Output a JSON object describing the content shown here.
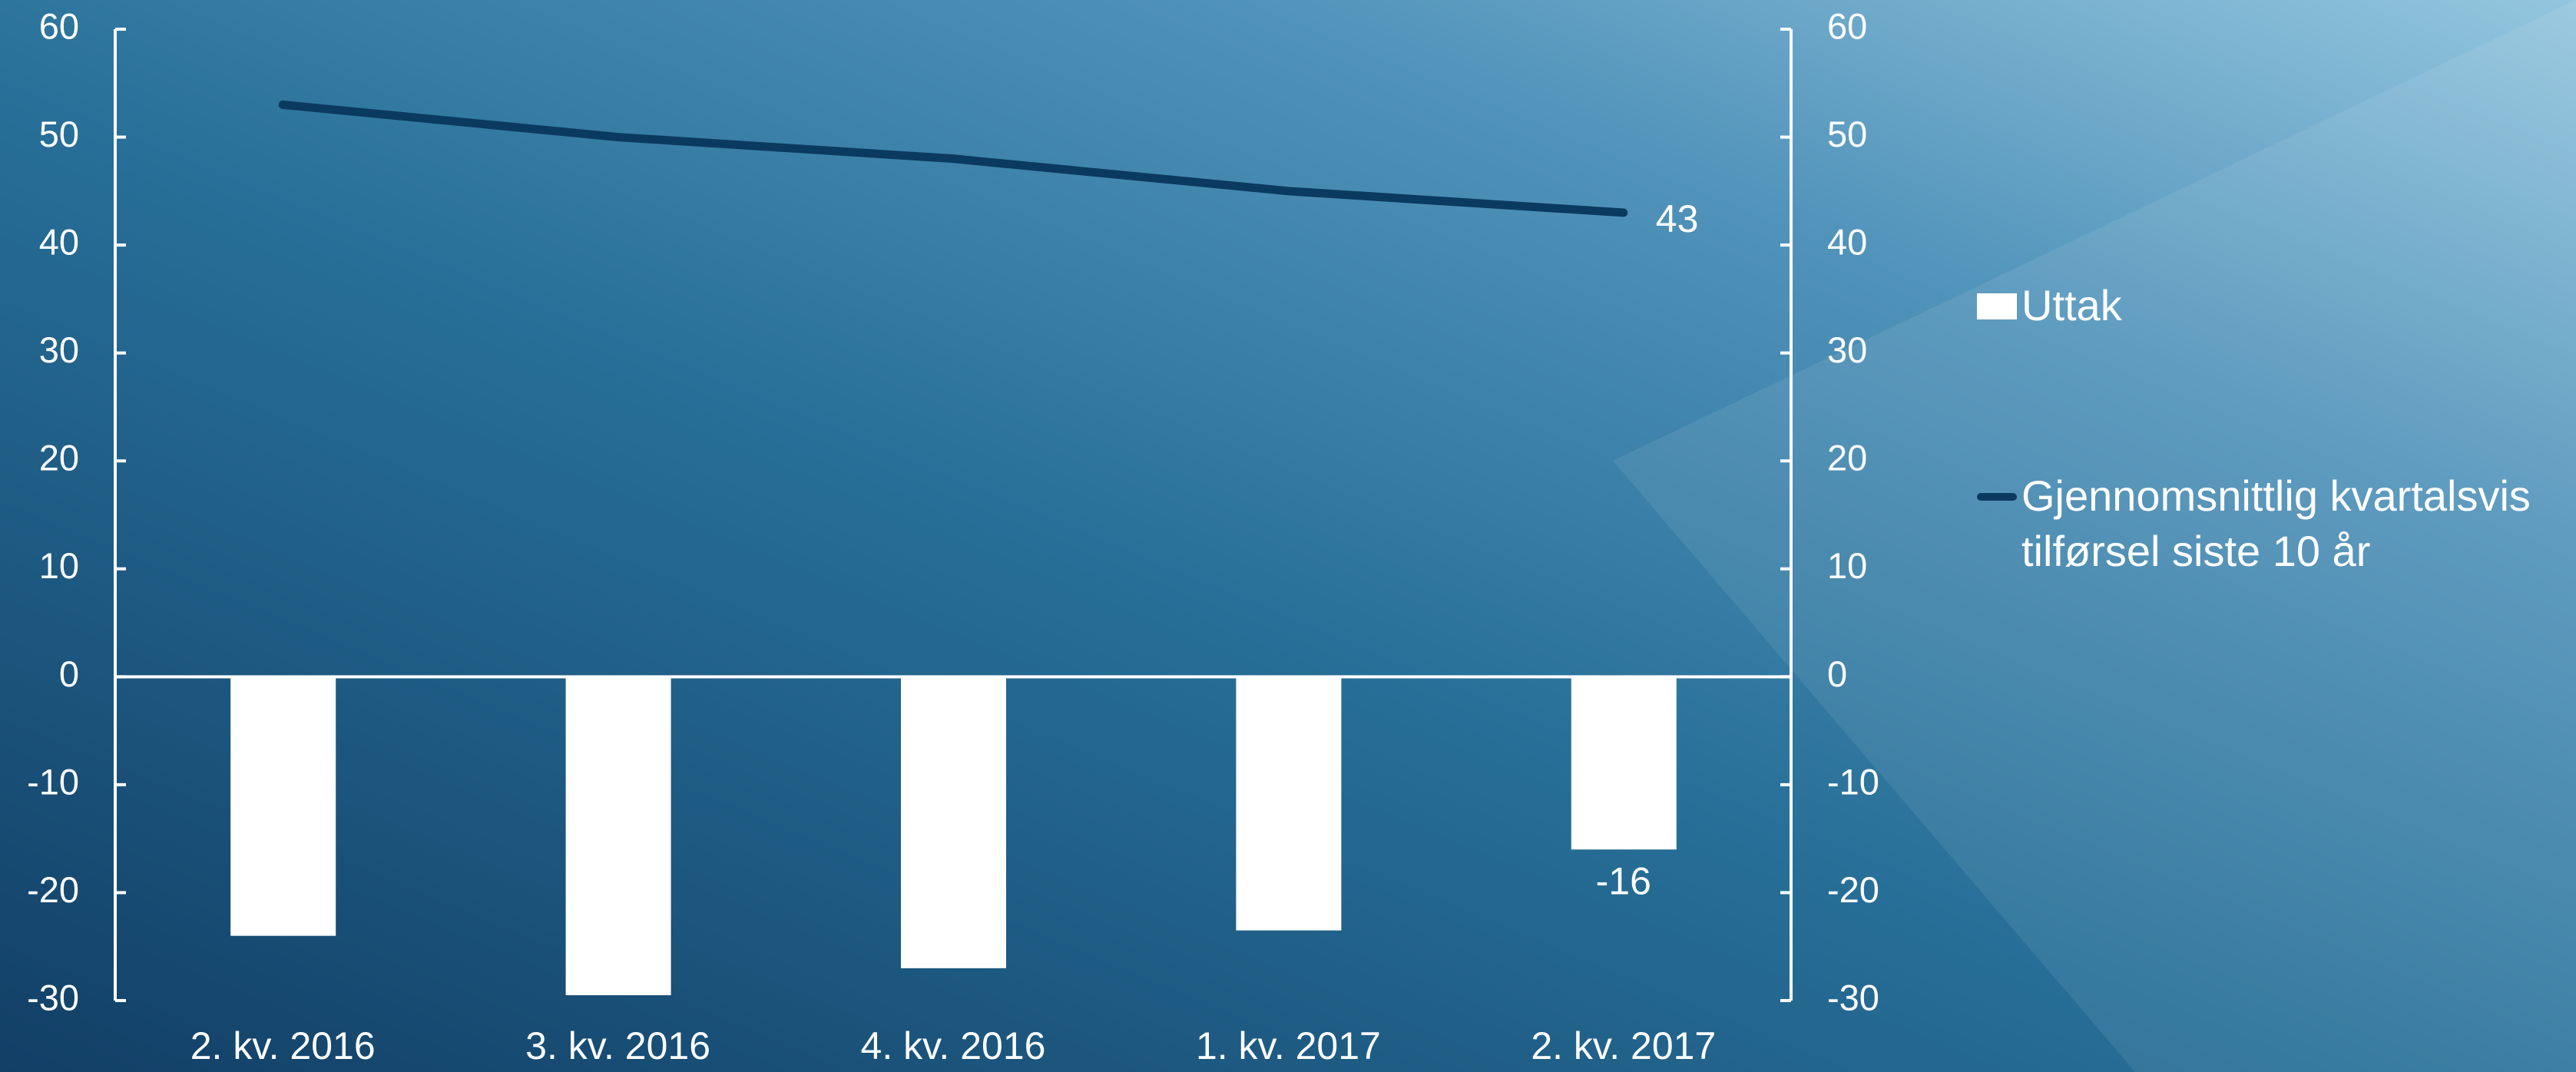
{
  "chart_data": {
    "type": "bar_line",
    "categories": [
      "2. kv. 2016",
      "3. kv. 2016",
      "4. kv. 2016",
      "1. kv. 2017",
      "2. kv. 2017"
    ],
    "series": [
      {
        "name": "Uttak",
        "type": "bar",
        "color": "#ffffff",
        "values": [
          -24,
          -29.5,
          -27,
          -23.5,
          -16
        ]
      },
      {
        "name": "Gjennomsnittlig kvartalsvis tilførsel siste 10 år",
        "type": "line",
        "color": "#0b3a60",
        "axis": "y2",
        "values": [
          53,
          50,
          48,
          45,
          43
        ]
      }
    ],
    "ylim": [
      -30,
      60
    ],
    "yticks": [
      -30,
      -20,
      -10,
      0,
      10,
      20,
      30,
      40,
      50,
      60
    ],
    "y2lim": [
      -30,
      60
    ],
    "y2ticks": [
      -30,
      -20,
      -10,
      0,
      10,
      20,
      30,
      40,
      50,
      60
    ],
    "legend": "right"
  }
}
